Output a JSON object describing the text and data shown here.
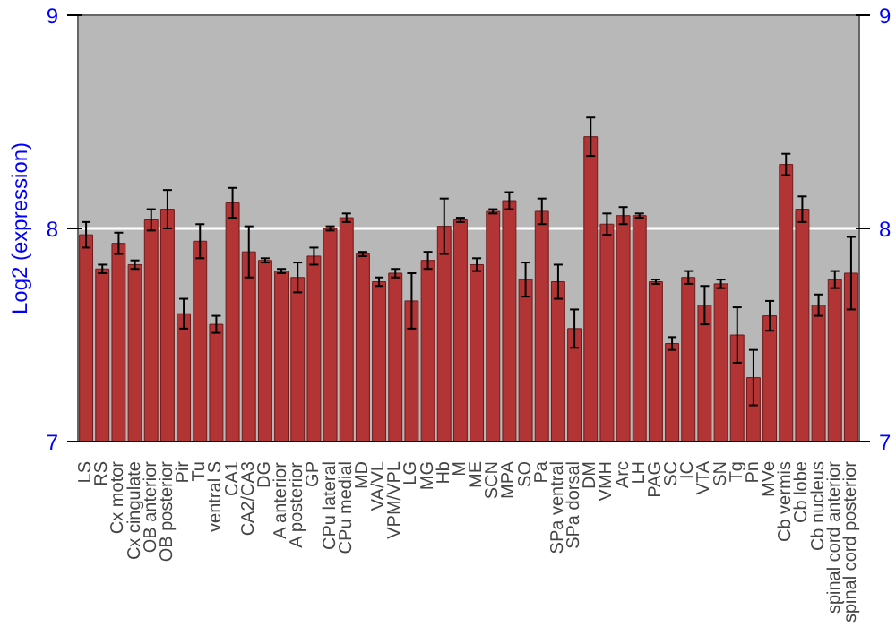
{
  "chart_data": {
    "type": "bar",
    "ylabel": "Log2 (expression)",
    "categories": [
      "LS",
      "RS",
      "Cx motor",
      "Cx cingulate",
      "OB anterior",
      "OB posterior",
      "Pir",
      "Tu",
      "ventral S",
      "CA1",
      "CA2/CA3",
      "DG",
      "A anterior",
      "A posterior",
      "GP",
      "CPu lateral",
      "CPu medial",
      "MD",
      "VA/VL",
      "VPM/VPL",
      "LG",
      "MG",
      "Hb",
      "M",
      "ME",
      "SCN",
      "MPA",
      "SO",
      "Pa",
      "SPa ventral",
      "SPa dorsal",
      "DM",
      "VMH",
      "Arc",
      "LH",
      "PAG",
      "SC",
      "IC",
      "VTA",
      "SN",
      "Tg",
      "Pn",
      "MVe",
      "Cb vermis",
      "Cb lobe",
      "Cb nucleus",
      "spinal cord anterior",
      "spinal cord posterior"
    ],
    "values": [
      7.97,
      7.81,
      7.93,
      7.83,
      8.04,
      8.09,
      7.6,
      7.94,
      7.55,
      8.12,
      7.89,
      7.85,
      7.8,
      7.77,
      7.87,
      8.0,
      8.05,
      7.88,
      7.75,
      7.79,
      7.66,
      7.85,
      8.01,
      8.04,
      7.83,
      8.08,
      8.13,
      7.76,
      8.08,
      7.75,
      7.53,
      8.43,
      8.02,
      8.06,
      8.06,
      7.75,
      7.46,
      7.77,
      7.64,
      7.74,
      7.5,
      7.3,
      7.59,
      8.3,
      8.09,
      7.64,
      7.76,
      7.79
    ],
    "errors": [
      0.06,
      0.02,
      0.05,
      0.02,
      0.05,
      0.09,
      0.07,
      0.08,
      0.04,
      0.07,
      0.12,
      0.01,
      0.01,
      0.07,
      0.04,
      0.01,
      0.02,
      0.01,
      0.02,
      0.02,
      0.13,
      0.04,
      0.13,
      0.01,
      0.03,
      0.01,
      0.04,
      0.08,
      0.06,
      0.08,
      0.09,
      0.09,
      0.05,
      0.04,
      0.01,
      0.01,
      0.03,
      0.03,
      0.09,
      0.02,
      0.13,
      0.13,
      0.07,
      0.05,
      0.06,
      0.05,
      0.04,
      0.17
    ],
    "color": "#b33434",
    "ylim": [
      7,
      9
    ],
    "yticks": [
      7,
      8,
      9
    ],
    "y2lim": [
      7,
      9
    ],
    "y2ticks": [
      7,
      8,
      9
    ],
    "grid": "y"
  }
}
